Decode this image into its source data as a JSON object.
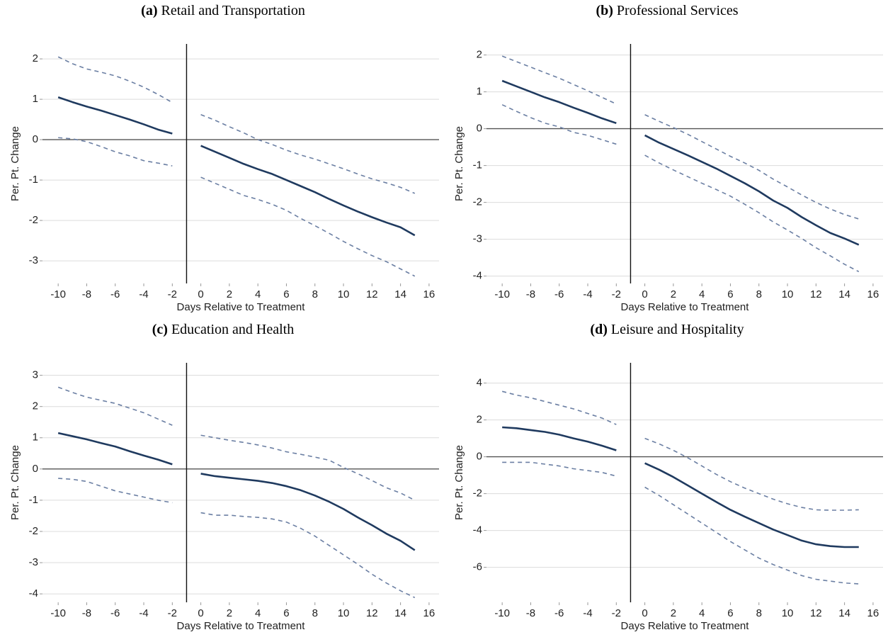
{
  "chart_data": [
    {
      "type": "line",
      "panel_label": "(a)",
      "title": "Retail and Transportation",
      "x_label": "Days Relative to Treatment",
      "y_label": "Per. Pt. Change",
      "x": [
        -10,
        -9,
        -8,
        -7,
        -6,
        -5,
        -4,
        -3,
        -2,
        -1,
        0,
        1,
        2,
        3,
        4,
        5,
        6,
        7,
        8,
        9,
        10,
        11,
        12,
        13,
        14,
        15
      ],
      "xlim": [
        -11.1,
        16.7
      ],
      "xticks": [
        -10,
        -8,
        -6,
        -4,
        -2,
        0,
        2,
        4,
        6,
        8,
        10,
        12,
        14,
        16
      ],
      "ylim": [
        -3.56,
        2.37
      ],
      "yticks": [
        -3,
        -2,
        -1,
        0,
        1,
        2
      ],
      "grid": true,
      "hline": 0,
      "vline": -1,
      "series": [
        {
          "color": "#1f3a5f",
          "dash": false,
          "values": [
            1.05,
            0.93,
            0.82,
            0.72,
            0.61,
            0.5,
            0.38,
            0.25,
            0.15,
            null,
            -0.15,
            -0.3,
            -0.45,
            -0.6,
            -0.73,
            -0.85,
            -1.0,
            -1.15,
            -1.3,
            -1.47,
            -1.63,
            -1.78,
            -1.92,
            -2.05,
            -2.17,
            -2.37
          ]
        },
        {
          "color": "#6b7fa3",
          "dash": true,
          "values": [
            2.05,
            1.88,
            1.75,
            1.67,
            1.58,
            1.45,
            1.3,
            1.12,
            0.92,
            null,
            0.62,
            0.48,
            0.32,
            0.17,
            0.0,
            -0.12,
            -0.26,
            -0.38,
            -0.48,
            -0.6,
            -0.72,
            -0.85,
            -0.97,
            -1.07,
            -1.18,
            -1.33
          ]
        },
        {
          "color": "#6b7fa3",
          "dash": true,
          "values": [
            0.05,
            0.02,
            -0.05,
            -0.17,
            -0.3,
            -0.4,
            -0.52,
            -0.58,
            -0.65,
            null,
            -0.93,
            -1.08,
            -1.23,
            -1.38,
            -1.48,
            -1.6,
            -1.75,
            -1.95,
            -2.13,
            -2.32,
            -2.52,
            -2.7,
            -2.87,
            -3.02,
            -3.2,
            -3.38
          ]
        }
      ]
    },
    {
      "type": "line",
      "panel_label": "(b)",
      "title": "Professional Services",
      "x_label": "Days Relative to Treatment",
      "y_label": "Per. Pt. Change",
      "x": [
        -10,
        -9,
        -8,
        -7,
        -6,
        -5,
        -4,
        -3,
        -2,
        -1,
        0,
        1,
        2,
        3,
        4,
        5,
        6,
        7,
        8,
        9,
        10,
        11,
        12,
        13,
        14,
        15
      ],
      "xlim": [
        -11.1,
        16.7
      ],
      "xticks": [
        -10,
        -8,
        -6,
        -4,
        -2,
        0,
        2,
        4,
        6,
        8,
        10,
        12,
        14,
        16
      ],
      "ylim": [
        -4.2,
        2.3
      ],
      "yticks": [
        -4,
        -3,
        -2,
        -1,
        0,
        1,
        2
      ],
      "grid": true,
      "hline": 0,
      "vline": -1,
      "series": [
        {
          "color": "#1f3a5f",
          "dash": false,
          "values": [
            1.3,
            1.15,
            1.0,
            0.85,
            0.72,
            0.57,
            0.43,
            0.28,
            0.15,
            null,
            -0.18,
            -0.38,
            -0.55,
            -0.72,
            -0.9,
            -1.08,
            -1.28,
            -1.48,
            -1.7,
            -1.95,
            -2.15,
            -2.4,
            -2.62,
            -2.83,
            -2.98,
            -3.15
          ]
        },
        {
          "color": "#6b7fa3",
          "dash": true,
          "values": [
            1.97,
            1.82,
            1.67,
            1.52,
            1.37,
            1.2,
            1.03,
            0.85,
            0.67,
            null,
            0.38,
            0.2,
            0.03,
            -0.15,
            -0.35,
            -0.55,
            -0.75,
            -0.93,
            -1.13,
            -1.37,
            -1.58,
            -1.8,
            -2.0,
            -2.18,
            -2.33,
            -2.45
          ]
        },
        {
          "color": "#6b7fa3",
          "dash": true,
          "values": [
            0.65,
            0.47,
            0.3,
            0.15,
            0.05,
            -0.1,
            -0.18,
            -0.3,
            -0.42,
            null,
            -0.72,
            -0.93,
            -1.12,
            -1.3,
            -1.48,
            -1.65,
            -1.83,
            -2.05,
            -2.28,
            -2.53,
            -2.75,
            -2.98,
            -3.23,
            -3.45,
            -3.68,
            -3.88
          ]
        }
      ]
    },
    {
      "type": "line",
      "panel_label": "(c)",
      "title": "Education and Health",
      "x_label": "Days Relative to Treatment",
      "y_label": "Per. Pt. Change",
      "x": [
        -10,
        -9,
        -8,
        -7,
        -6,
        -5,
        -4,
        -3,
        -2,
        -1,
        0,
        1,
        2,
        3,
        4,
        5,
        6,
        7,
        8,
        9,
        10,
        11,
        12,
        13,
        14,
        15
      ],
      "xlim": [
        -11.1,
        16.7
      ],
      "xticks": [
        -10,
        -8,
        -6,
        -4,
        -2,
        0,
        2,
        4,
        6,
        8,
        10,
        12,
        14,
        16
      ],
      "ylim": [
        -4.27,
        3.4
      ],
      "yticks": [
        -4,
        -3,
        -2,
        -1,
        0,
        1,
        2,
        3
      ],
      "grid": true,
      "hline": 0,
      "vline": -1,
      "series": [
        {
          "color": "#1f3a5f",
          "dash": false,
          "values": [
            1.15,
            1.05,
            0.95,
            0.83,
            0.72,
            0.57,
            0.43,
            0.3,
            0.15,
            null,
            -0.15,
            -0.23,
            -0.28,
            -0.33,
            -0.38,
            -0.45,
            -0.55,
            -0.68,
            -0.85,
            -1.05,
            -1.28,
            -1.55,
            -1.8,
            -2.07,
            -2.3,
            -2.6
          ]
        },
        {
          "color": "#6b7fa3",
          "dash": true,
          "values": [
            2.62,
            2.45,
            2.3,
            2.2,
            2.1,
            1.95,
            1.8,
            1.6,
            1.4,
            null,
            1.08,
            1.0,
            0.92,
            0.85,
            0.77,
            0.67,
            0.55,
            0.47,
            0.38,
            0.28,
            0.05,
            -0.15,
            -0.37,
            -0.6,
            -0.77,
            -1.0
          ]
        },
        {
          "color": "#6b7fa3",
          "dash": true,
          "values": [
            -0.3,
            -0.33,
            -0.4,
            -0.55,
            -0.7,
            -0.8,
            -0.9,
            -1.0,
            -1.08,
            null,
            -1.4,
            -1.48,
            -1.48,
            -1.52,
            -1.55,
            -1.6,
            -1.7,
            -1.9,
            -2.15,
            -2.45,
            -2.75,
            -3.05,
            -3.37,
            -3.65,
            -3.9,
            -4.12
          ]
        }
      ]
    },
    {
      "type": "line",
      "panel_label": "(d)",
      "title": "Leisure and Hospitality",
      "x_label": "Days Relative to Treatment",
      "y_label": "Per. Pt. Change",
      "x": [
        -10,
        -9,
        -8,
        -7,
        -6,
        -5,
        -4,
        -3,
        -2,
        -1,
        0,
        1,
        2,
        3,
        4,
        5,
        6,
        7,
        8,
        9,
        10,
        11,
        12,
        13,
        14,
        15
      ],
      "xlim": [
        -11.1,
        16.7
      ],
      "xticks": [
        -10,
        -8,
        -6,
        -4,
        -2,
        0,
        2,
        4,
        6,
        8,
        10,
        12,
        14,
        16
      ],
      "ylim": [
        -7.9,
        5.1
      ],
      "yticks": [
        -6,
        -4,
        -2,
        0,
        2,
        4
      ],
      "grid": true,
      "hline": 0,
      "vline": -1,
      "series": [
        {
          "color": "#1f3a5f",
          "dash": false,
          "values": [
            1.6,
            1.55,
            1.45,
            1.35,
            1.2,
            1.0,
            0.82,
            0.6,
            0.35,
            null,
            -0.35,
            -0.7,
            -1.1,
            -1.55,
            -2.0,
            -2.45,
            -2.88,
            -3.25,
            -3.6,
            -3.95,
            -4.25,
            -4.55,
            -4.75,
            -4.85,
            -4.9,
            -4.9
          ]
        },
        {
          "color": "#6b7fa3",
          "dash": true,
          "values": [
            3.55,
            3.35,
            3.2,
            3.0,
            2.8,
            2.6,
            2.35,
            2.1,
            1.75,
            null,
            1.0,
            0.7,
            0.35,
            -0.05,
            -0.5,
            -0.95,
            -1.35,
            -1.7,
            -2.0,
            -2.3,
            -2.55,
            -2.75,
            -2.88,
            -2.9,
            -2.9,
            -2.88
          ]
        },
        {
          "color": "#6b7fa3",
          "dash": true,
          "values": [
            -0.3,
            -0.3,
            -0.3,
            -0.4,
            -0.5,
            -0.65,
            -0.75,
            -0.85,
            -1.05,
            null,
            -1.65,
            -2.1,
            -2.6,
            -3.1,
            -3.6,
            -4.1,
            -4.6,
            -5.05,
            -5.5,
            -5.85,
            -6.15,
            -6.45,
            -6.65,
            -6.75,
            -6.85,
            -6.9
          ]
        }
      ]
    }
  ]
}
